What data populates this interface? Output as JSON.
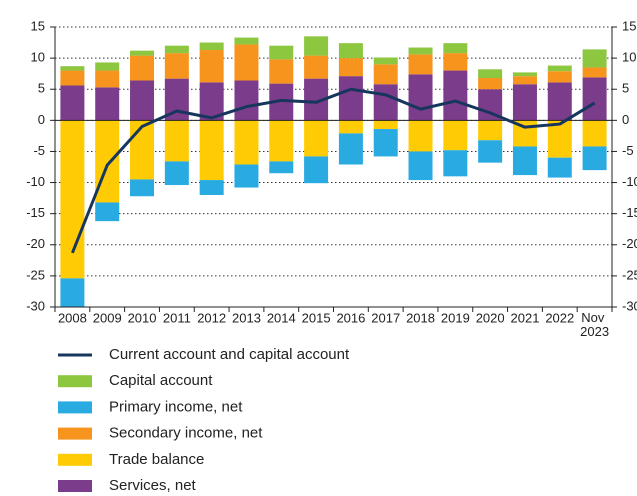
{
  "chart_data": {
    "type": "stacked-bar-line",
    "categories": [
      "2008",
      "2009",
      "2010",
      "2011",
      "2012",
      "2013",
      "2014",
      "2015",
      "2016",
      "2017",
      "2018",
      "2019",
      "2020",
      "2021",
      "2022",
      "Nov 2023"
    ],
    "ylim": [
      -30,
      15
    ],
    "yticks": [
      -30,
      -25,
      -20,
      -15,
      -10,
      -5,
      0,
      5,
      10,
      15
    ],
    "grid": true,
    "series": [
      {
        "name": "Current account and capital account",
        "kind": "line",
        "color": "#17365d",
        "values": [
          -21.3,
          -7.2,
          -1.0,
          1.5,
          0.4,
          2.2,
          3.2,
          2.9,
          5.0,
          4.1,
          1.8,
          3.1,
          1.2,
          -1.1,
          -0.6,
          2.8
        ]
      },
      {
        "name": "Capital account",
        "kind": "bar",
        "color": "#8dc63f",
        "values": [
          0.7,
          1.3,
          0.8,
          1.2,
          1.2,
          1.1,
          2.2,
          3.1,
          2.4,
          1.1,
          1.1,
          1.6,
          1.4,
          0.6,
          0.9,
          2.9
        ]
      },
      {
        "name": "Primary income, net",
        "kind": "bar",
        "color": "#29abe2",
        "values": [
          -4.6,
          -3.0,
          -2.7,
          -3.8,
          -2.4,
          -3.7,
          -1.9,
          -4.3,
          -5.0,
          -4.4,
          -4.6,
          -4.2,
          -3.6,
          -4.6,
          -3.2,
          -3.8
        ]
      },
      {
        "name": "Secondary income, net",
        "kind": "bar",
        "color": "#f7941d",
        "values": [
          2.4,
          2.7,
          4.0,
          4.1,
          5.2,
          5.8,
          3.9,
          3.7,
          2.9,
          3.2,
          3.2,
          2.8,
          1.8,
          1.3,
          1.8,
          1.6
        ]
      },
      {
        "name": "Trade balance",
        "kind": "bar",
        "color": "#ffcb05",
        "values": [
          -25.4,
          -13.2,
          -9.5,
          -6.6,
          -9.6,
          -7.1,
          -6.6,
          -5.8,
          -2.1,
          -1.4,
          -5.0,
          -4.8,
          -3.2,
          -4.2,
          -6.0,
          -4.2
        ]
      },
      {
        "name": "Services, net",
        "kind": "bar",
        "color": "#7b3c8b",
        "values": [
          5.6,
          5.3,
          6.4,
          6.7,
          6.1,
          6.4,
          5.9,
          6.7,
          7.1,
          5.8,
          7.4,
          8.0,
          5.0,
          5.8,
          6.1,
          6.9
        ]
      }
    ]
  }
}
